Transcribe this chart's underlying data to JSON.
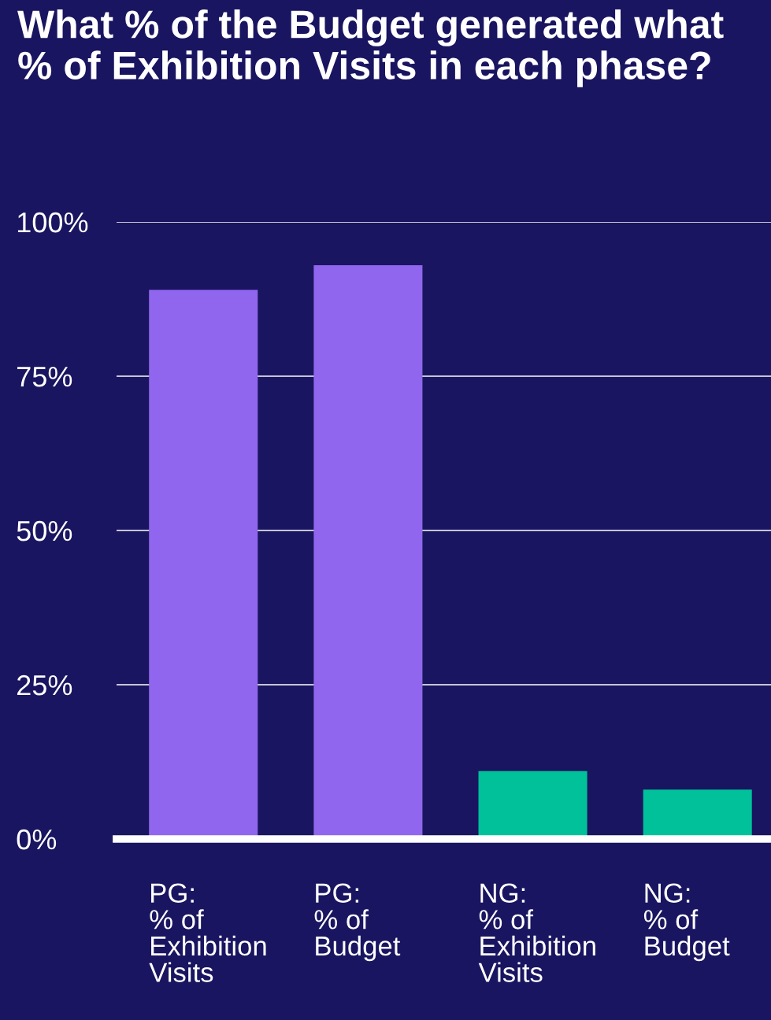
{
  "chart_data": {
    "type": "bar",
    "title": "What % of the Budget generated what\n% of Exhibition Visits in each phase?",
    "categories": [
      "PG:\n% of\nExhibition\nVisits",
      "PG:\n% of\nBudget",
      "NG:\n% of\nExhibition\nVisits",
      "NG:\n% of\nBudget"
    ],
    "values": [
      89,
      93,
      11,
      8
    ],
    "colors": [
      "#9166ee",
      "#9166ee",
      "#00c19a",
      "#00c19a"
    ],
    "ylim": [
      0,
      100
    ],
    "yticks": [
      {
        "value": 0,
        "label": "0%"
      },
      {
        "value": 25,
        "label": "25%"
      },
      {
        "value": 50,
        "label": "50%"
      },
      {
        "value": 75,
        "label": "75%"
      },
      {
        "value": 100,
        "label": "100%"
      }
    ],
    "grid": "y"
  }
}
